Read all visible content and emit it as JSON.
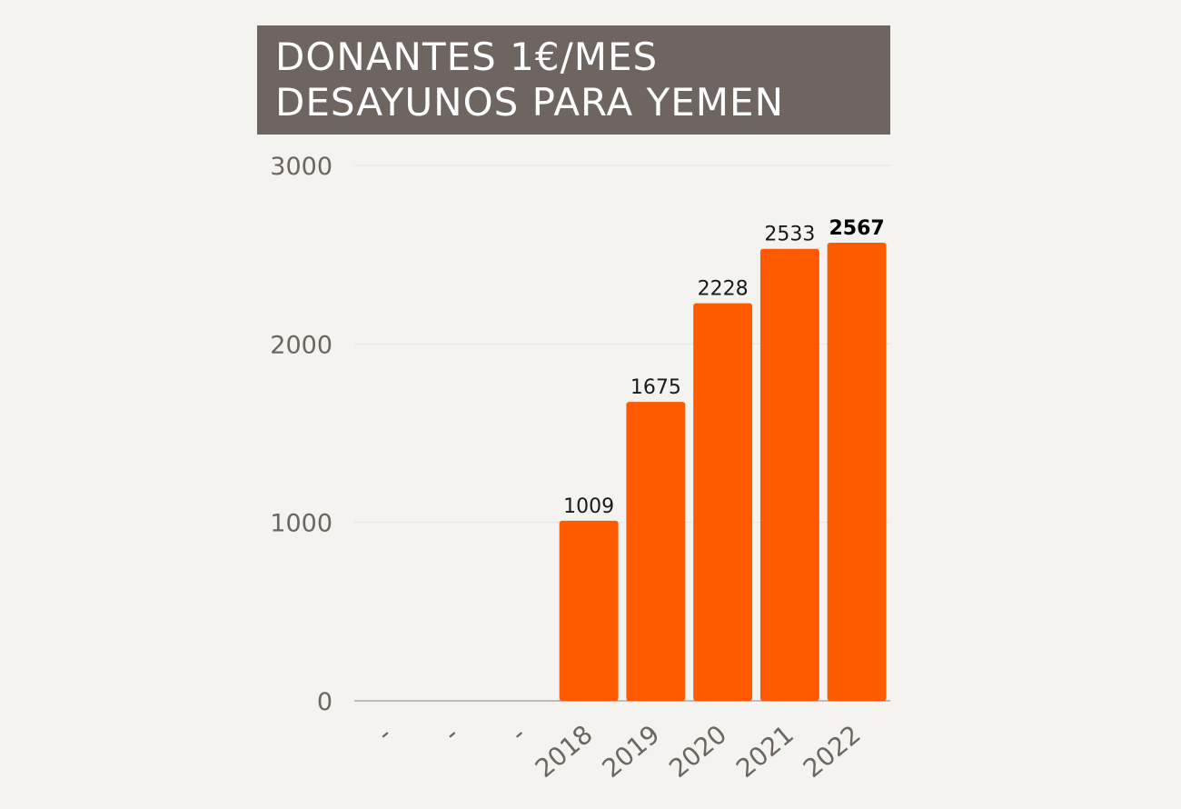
{
  "chart_data": {
    "type": "bar",
    "title_lines": [
      "DONANTES 1€/MES",
      "DESAYUNOS PARA YEMEN"
    ],
    "categories": [
      "-",
      "-",
      "-",
      "2018",
      "2019",
      "2020",
      "2021",
      "2022"
    ],
    "values": [
      null,
      null,
      null,
      1009,
      1675,
      2228,
      2533,
      2567
    ],
    "data_labels": [
      "",
      "",
      "",
      "1009",
      "1675",
      "2228",
      "2533",
      "2567"
    ],
    "highlight_index": 7,
    "y_ticks": [
      "0",
      "1000",
      "2000",
      "3000"
    ],
    "ylim": [
      0,
      3000
    ],
    "xlabel": "",
    "ylabel": "",
    "grid": true,
    "legend": "none",
    "colors": {
      "bar": "#ff5a00",
      "title_background": "#6e6460",
      "axis_text": "#6e6460",
      "background": "#f4f3ef"
    }
  }
}
